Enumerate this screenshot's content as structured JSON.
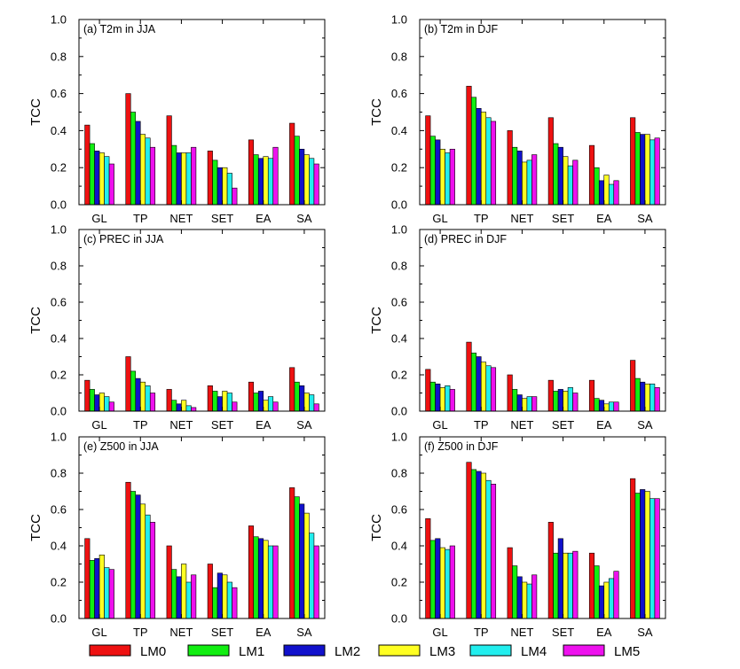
{
  "chart_data": [
    {
      "type": "bar",
      "title": "(a) T2m in JJA",
      "ylabel": "TCC",
      "ylim": [
        0,
        1.0
      ],
      "yticks": [
        "0.0",
        "0.2",
        "0.4",
        "0.6",
        "0.8",
        "1.0"
      ],
      "categories": [
        "GL",
        "TP",
        "NET",
        "SET",
        "EA",
        "SA"
      ],
      "series": [
        {
          "name": "LM0",
          "values": [
            0.43,
            0.6,
            0.48,
            0.29,
            0.35,
            0.44
          ]
        },
        {
          "name": "LM1",
          "values": [
            0.33,
            0.5,
            0.32,
            0.24,
            0.27,
            0.37
          ]
        },
        {
          "name": "LM2",
          "values": [
            0.29,
            0.45,
            0.28,
            0.2,
            0.25,
            0.3
          ]
        },
        {
          "name": "LM3",
          "values": [
            0.28,
            0.38,
            0.28,
            0.2,
            0.26,
            0.27
          ]
        },
        {
          "name": "LM4",
          "values": [
            0.26,
            0.36,
            0.28,
            0.17,
            0.25,
            0.25
          ]
        },
        {
          "name": "LM5",
          "values": [
            0.22,
            0.31,
            0.31,
            0.09,
            0.31,
            0.22
          ]
        }
      ]
    },
    {
      "type": "bar",
      "title": "(b) T2m in DJF",
      "ylabel": "TCC",
      "ylim": [
        0,
        1.0
      ],
      "yticks": [
        "0.0",
        "0.2",
        "0.4",
        "0.6",
        "0.8",
        "1.0"
      ],
      "categories": [
        "GL",
        "TP",
        "NET",
        "SET",
        "EA",
        "SA"
      ],
      "series": [
        {
          "name": "LM0",
          "values": [
            0.48,
            0.64,
            0.4,
            0.47,
            0.32,
            0.47
          ]
        },
        {
          "name": "LM1",
          "values": [
            0.37,
            0.58,
            0.31,
            0.33,
            0.2,
            0.39
          ]
        },
        {
          "name": "LM2",
          "values": [
            0.35,
            0.52,
            0.29,
            0.31,
            0.13,
            0.38
          ]
        },
        {
          "name": "LM3",
          "values": [
            0.3,
            0.5,
            0.23,
            0.26,
            0.16,
            0.38
          ]
        },
        {
          "name": "LM4",
          "values": [
            0.28,
            0.47,
            0.24,
            0.21,
            0.11,
            0.35
          ]
        },
        {
          "name": "LM5",
          "values": [
            0.3,
            0.45,
            0.27,
            0.24,
            0.13,
            0.36
          ]
        }
      ]
    },
    {
      "type": "bar",
      "title": "(c) PREC in JJA",
      "ylabel": "TCC",
      "ylim": [
        0,
        1.0
      ],
      "yticks": [
        "0.0",
        "0.2",
        "0.4",
        "0.6",
        "0.8",
        "1.0"
      ],
      "categories": [
        "GL",
        "TP",
        "NET",
        "SET",
        "EA",
        "SA"
      ],
      "series": [
        {
          "name": "LM0",
          "values": [
            0.17,
            0.3,
            0.12,
            0.14,
            0.16,
            0.24
          ]
        },
        {
          "name": "LM1",
          "values": [
            0.12,
            0.22,
            0.06,
            0.11,
            0.1,
            0.16
          ]
        },
        {
          "name": "LM2",
          "values": [
            0.09,
            0.18,
            0.04,
            0.08,
            0.11,
            0.14
          ]
        },
        {
          "name": "LM3",
          "values": [
            0.1,
            0.16,
            0.06,
            0.11,
            0.06,
            0.1
          ]
        },
        {
          "name": "LM4",
          "values": [
            0.08,
            0.14,
            0.03,
            0.1,
            0.08,
            0.09
          ]
        },
        {
          "name": "LM5",
          "values": [
            0.05,
            0.1,
            0.02,
            0.05,
            0.05,
            0.04
          ]
        }
      ]
    },
    {
      "type": "bar",
      "title": "(d) PREC in DJF",
      "ylabel": "TCC",
      "ylim": [
        0,
        1.0
      ],
      "yticks": [
        "0.0",
        "0.2",
        "0.4",
        "0.6",
        "0.8",
        "1.0"
      ],
      "categories": [
        "GL",
        "TP",
        "NET",
        "SET",
        "EA",
        "SA"
      ],
      "series": [
        {
          "name": "LM0",
          "values": [
            0.23,
            0.38,
            0.2,
            0.17,
            0.17,
            0.28
          ]
        },
        {
          "name": "LM1",
          "values": [
            0.16,
            0.32,
            0.12,
            0.11,
            0.07,
            0.18
          ]
        },
        {
          "name": "LM2",
          "values": [
            0.15,
            0.3,
            0.09,
            0.12,
            0.06,
            0.16
          ]
        },
        {
          "name": "LM3",
          "values": [
            0.13,
            0.27,
            0.07,
            0.11,
            0.04,
            0.15
          ]
        },
        {
          "name": "LM4",
          "values": [
            0.14,
            0.25,
            0.08,
            0.13,
            0.05,
            0.15
          ]
        },
        {
          "name": "LM5",
          "values": [
            0.12,
            0.24,
            0.08,
            0.1,
            0.05,
            0.13
          ]
        }
      ]
    },
    {
      "type": "bar",
      "title": "(e) Z500 in JJA",
      "ylabel": "TCC",
      "ylim": [
        0,
        1.0
      ],
      "yticks": [
        "0.0",
        "0.2",
        "0.4",
        "0.6",
        "0.8",
        "1.0"
      ],
      "categories": [
        "GL",
        "TP",
        "NET",
        "SET",
        "EA",
        "SA"
      ],
      "series": [
        {
          "name": "LM0",
          "values": [
            0.44,
            0.75,
            0.4,
            0.3,
            0.51,
            0.72
          ]
        },
        {
          "name": "LM1",
          "values": [
            0.32,
            0.7,
            0.27,
            0.17,
            0.45,
            0.67
          ]
        },
        {
          "name": "LM2",
          "values": [
            0.33,
            0.68,
            0.23,
            0.25,
            0.44,
            0.63
          ]
        },
        {
          "name": "LM3",
          "values": [
            0.35,
            0.63,
            0.3,
            0.24,
            0.43,
            0.58
          ]
        },
        {
          "name": "LM4",
          "values": [
            0.28,
            0.57,
            0.2,
            0.2,
            0.4,
            0.47
          ]
        },
        {
          "name": "LM5",
          "values": [
            0.27,
            0.53,
            0.24,
            0.17,
            0.4,
            0.4
          ]
        }
      ]
    },
    {
      "type": "bar",
      "title": "(f) Z500 in DJF",
      "ylabel": "TCC",
      "ylim": [
        0,
        1.0
      ],
      "yticks": [
        "0.0",
        "0.2",
        "0.4",
        "0.6",
        "0.8",
        "1.0"
      ],
      "categories": [
        "GL",
        "TP",
        "NET",
        "SET",
        "EA",
        "SA"
      ],
      "series": [
        {
          "name": "LM0",
          "values": [
            0.55,
            0.86,
            0.39,
            0.53,
            0.36,
            0.77
          ]
        },
        {
          "name": "LM1",
          "values": [
            0.43,
            0.82,
            0.29,
            0.36,
            0.29,
            0.69
          ]
        },
        {
          "name": "LM2",
          "values": [
            0.44,
            0.81,
            0.23,
            0.44,
            0.18,
            0.71
          ]
        },
        {
          "name": "LM3",
          "values": [
            0.39,
            0.8,
            0.2,
            0.36,
            0.2,
            0.7
          ]
        },
        {
          "name": "LM4",
          "values": [
            0.38,
            0.76,
            0.19,
            0.36,
            0.22,
            0.66
          ]
        },
        {
          "name": "LM5",
          "values": [
            0.4,
            0.74,
            0.24,
            0.37,
            0.26,
            0.66
          ]
        }
      ]
    }
  ],
  "legend": {
    "placement": "bottom",
    "entries": [
      {
        "label": "LM0",
        "color": "#ee1111"
      },
      {
        "label": "LM1",
        "color": "#11ee11"
      },
      {
        "label": "LM2",
        "color": "#1111cc"
      },
      {
        "label": "LM3",
        "color": "#ffff22"
      },
      {
        "label": "LM4",
        "color": "#22eeee"
      },
      {
        "label": "LM5",
        "color": "#ee11ee"
      }
    ]
  }
}
